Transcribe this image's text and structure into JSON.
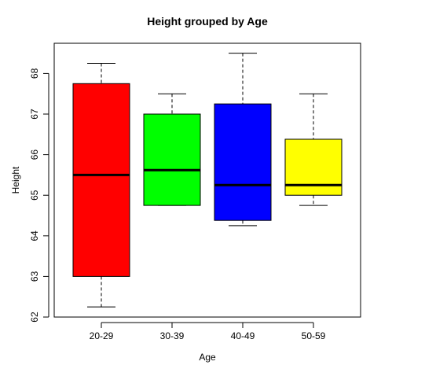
{
  "chart_data": {
    "type": "box",
    "title": "Height grouped by Age",
    "xlabel": "Age",
    "ylabel": "Height",
    "ylim": [
      62,
      68.8
    ],
    "yticks": [
      62,
      63,
      64,
      65,
      66,
      67,
      68
    ],
    "ytick_labels": [
      "62",
      "63",
      "64",
      "65",
      "66",
      "67",
      "68"
    ],
    "grid": false,
    "legend": "none",
    "categories": [
      "20-29",
      "30-39",
      "40-49",
      "50-59"
    ],
    "boxes": [
      {
        "category": "20-29",
        "color": "#ff0000",
        "whisker_low": 62.25,
        "q1": 63.0,
        "median": 65.5,
        "q3": 67.75,
        "whisker_high": 68.25
      },
      {
        "category": "30-39",
        "color": "#00ff00",
        "whisker_low": 64.75,
        "q1": 64.75,
        "median": 65.62,
        "q3": 67.0,
        "whisker_high": 67.5
      },
      {
        "category": "40-49",
        "color": "#0000ff",
        "whisker_low": 64.25,
        "q1": 64.38,
        "median": 65.25,
        "q3": 67.25,
        "whisker_high": 68.5
      },
      {
        "category": "50-59",
        "color": "#ffff00",
        "whisker_low": 64.75,
        "q1": 65.0,
        "median": 65.25,
        "q3": 66.38,
        "whisker_high": 67.5
      }
    ]
  }
}
